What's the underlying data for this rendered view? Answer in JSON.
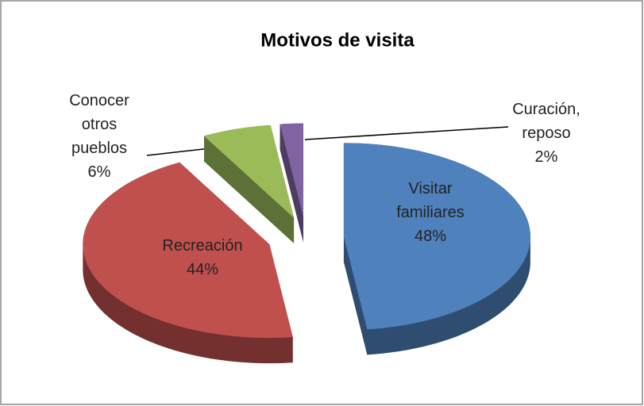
{
  "chart_data": {
    "type": "pie",
    "title": "Motivos de visita",
    "categories": [
      "Visitar familiares",
      "Recreación",
      "Conocer otros pueblos",
      "Curación, reposo"
    ],
    "values": [
      48,
      44,
      6,
      2
    ],
    "value_labels": [
      "48%",
      "44%",
      "6%",
      "2%"
    ],
    "colors": [
      "#4f81bd",
      "#c0504d",
      "#9bbb59",
      "#8064a2"
    ]
  }
}
